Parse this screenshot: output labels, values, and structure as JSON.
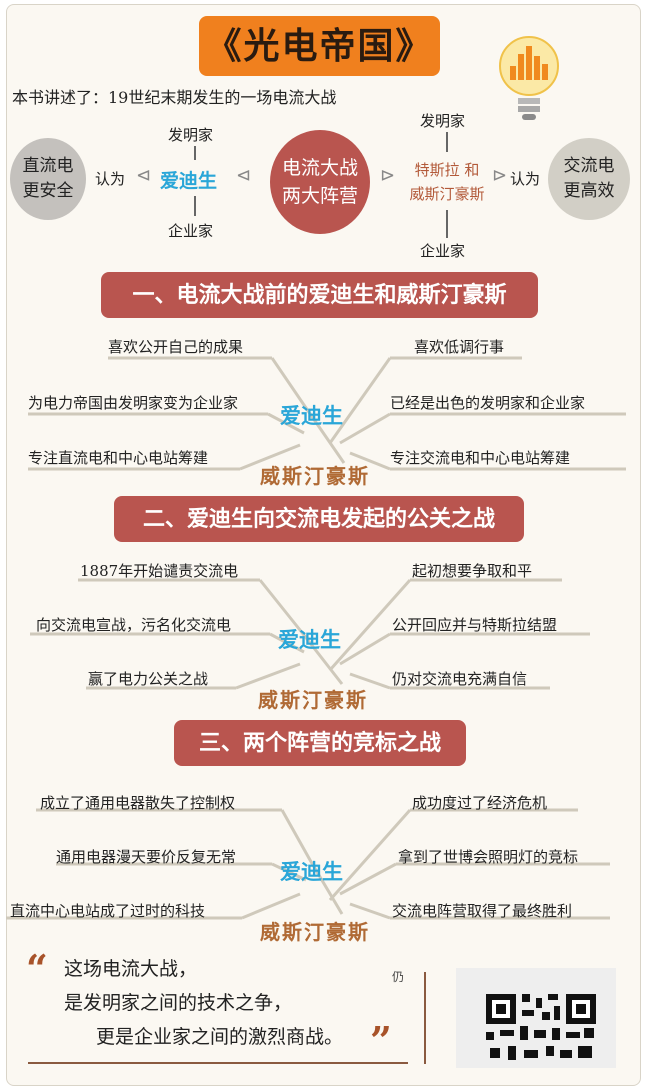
{
  "title": "《光电帝国》",
  "intro": "本书讲述了：19世纪末期发生的一场电流大战",
  "overview": {
    "left_circle": [
      "直流电",
      "更安全"
    ],
    "right_circle": [
      "交流电",
      "更高效"
    ],
    "center_circle": [
      "电流大战",
      "两大阵营"
    ],
    "edison": "爱迪生",
    "tesla_line1": "特斯拉 和",
    "tesla_line2": "威斯汀豪斯",
    "inventor_left": "发明家",
    "businessman_left": "企业家",
    "inventor_right": "发明家",
    "businessman_right": "企业家",
    "think_left": "认为",
    "think_right": "认为"
  },
  "sections": [
    {
      "title": "一、电流大战前的爱迪生和威斯汀豪斯",
      "edison": "爱迪生",
      "westinghouse": "威斯汀豪斯",
      "left": [
        "喜欢公开自己的成果",
        "为电力帝国由发明家变为企业家",
        "专注直流电和中心电站筹建"
      ],
      "right": [
        "喜欢低调行事",
        "已经是出色的发明家和企业家",
        "专注交流电和中心电站筹建"
      ]
    },
    {
      "title": "二、爱迪生向交流电发起的公关之战",
      "edison": "爱迪生",
      "westinghouse": "威斯汀豪斯",
      "left": [
        "1887年开始谴责交流电",
        "向交流电宣战，污名化交流电",
        "赢了电力公关之战"
      ],
      "right": [
        "起初想要争取和平",
        "公开回应并与特斯拉结盟",
        "仍对交流电充满自信"
      ]
    },
    {
      "title": "三、两个阵营的竞标之战",
      "edison": "爱迪生",
      "westinghouse": "威斯汀豪斯",
      "left": [
        "成立了通用电器散失了控制权",
        "通用电器漫天要价反复无常",
        "直流中心电站成了过时的科技"
      ],
      "right": [
        "成功度过了经济危机",
        "拿到了世博会照明灯的竞标",
        "交流电阵营取得了最终胜利"
      ]
    }
  ],
  "quote": {
    "open": "“",
    "close": "”",
    "lines": [
      "这场电流大战，",
      "是发明家之间的技术之争，",
      "更是企业家之间的激烈商战。"
    ]
  },
  "side_char": "仍",
  "colors": {
    "accent": "#b9554f",
    "title_bg": "#f0801e",
    "edison": "#2aa6d8",
    "westinghouse": "#b06a35"
  }
}
